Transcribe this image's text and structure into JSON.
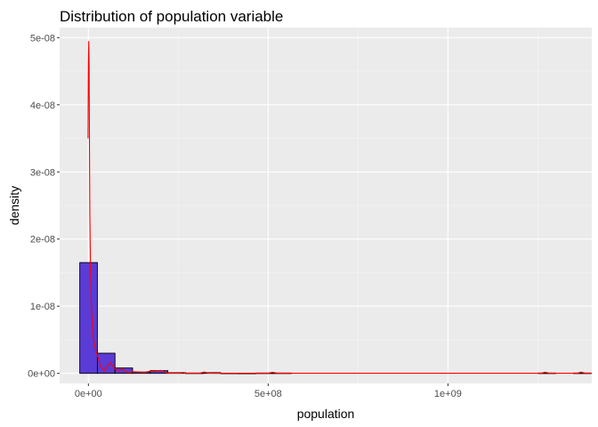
{
  "chart_data": {
    "type": "histogram",
    "title": "Distribution of population variable",
    "xlabel": "population",
    "ylabel": "density",
    "xlim": [
      -80000000,
      1400000000
    ],
    "ylim": [
      -1.5e-09,
      5.15e-08
    ],
    "x_ticks": [
      {
        "value": 0,
        "label": "0e+00"
      },
      {
        "value": 500000000,
        "label": "5e+08"
      },
      {
        "value": 1000000000,
        "label": "1e+09"
      }
    ],
    "y_ticks": [
      {
        "value": 0,
        "label": "0e+00"
      },
      {
        "value": 1e-08,
        "label": "1e-08"
      },
      {
        "value": 2e-08,
        "label": "2e-08"
      },
      {
        "value": 3e-08,
        "label": "3e-08"
      },
      {
        "value": 4e-08,
        "label": "4e-08"
      },
      {
        "value": 5e-08,
        "label": "5e-08"
      }
    ],
    "grid": true,
    "bin_width": 49000000,
    "bars": [
      {
        "x_start": -24000000,
        "x_end": 25000000,
        "density": 1.65e-08
      },
      {
        "x_start": 25000000,
        "x_end": 74000000,
        "density": 3e-09
      },
      {
        "x_start": 74000000,
        "x_end": 123000000,
        "density": 8e-10
      },
      {
        "x_start": 123000000,
        "x_end": 172000000,
        "density": 2e-10
      },
      {
        "x_start": 172000000,
        "x_end": 221000000,
        "density": 4e-10
      },
      {
        "x_start": 221000000,
        "x_end": 270000000,
        "density": 1e-10
      },
      {
        "x_start": 270000000,
        "x_end": 319000000,
        "density": 5e-11
      },
      {
        "x_start": 319000000,
        "x_end": 368000000,
        "density": 1e-10
      },
      {
        "x_start": 368000000,
        "x_end": 417000000,
        "density": 3e-11
      },
      {
        "x_start": 417000000,
        "x_end": 466000000,
        "density": 2e-11
      },
      {
        "x_start": 466000000,
        "x_end": 515000000,
        "density": 5e-11
      },
      {
        "x_start": 515000000,
        "x_end": 564000000,
        "density": 5e-11
      },
      {
        "x_start": 1251000000,
        "x_end": 1300000000,
        "density": 5e-11
      },
      {
        "x_start": 1349000000,
        "x_end": 1398000000,
        "density": 5e-11
      }
    ],
    "density_curve": {
      "x": [
        -1000000,
        0,
        1000000,
        2000000,
        3000000,
        4000000,
        6000000,
        9000000,
        14000000,
        20000000,
        26000000,
        34000000,
        45000000,
        55000000,
        62000000,
        70000000,
        80000000,
        95000000,
        110000000,
        125000000,
        140000000,
        155000000,
        170000000,
        190000000,
        200000000,
        210000000,
        220000000,
        240000000,
        255000000,
        262000000,
        270000000,
        290000000,
        310000000,
        322000000,
        335000000,
        360000000,
        500000000,
        512000000,
        525000000,
        600000000,
        800000000,
        1000000000,
        1200000000,
        1260000000,
        1270000000,
        1282000000,
        1330000000,
        1360000000,
        1370000000,
        1382000000,
        1400000000
      ],
      "y": [
        3.5e-08,
        4.6e-08,
        4.95e-08,
        4.6e-08,
        3.4e-08,
        2.4e-08,
        1.5e-08,
        9e-09,
        5e-09,
        3.5e-09,
        2.5e-09,
        1e-09,
        3.5e-10,
        1.2e-09,
        1.6e-09,
        9e-10,
        4e-10,
        6e-10,
        1e-10,
        2.5e-10,
        2e-10,
        1.5e-10,
        3e-10,
        3e-10,
        4.5e-10,
        2.5e-10,
        5e-11,
        5e-11,
        1e-11,
        1.5e-10,
        1e-11,
        2e-11,
        2e-11,
        2e-10,
        3e-11,
        1e-11,
        1e-11,
        1.6e-10,
        1e-11,
        1e-11,
        1e-11,
        1e-11,
        1e-11,
        1e-11,
        1.8e-10,
        1e-11,
        1e-11,
        1e-11,
        2e-10,
        1e-11,
        1e-11
      ]
    },
    "colors": {
      "panel_background": "#ebebeb",
      "grid_major": "#ffffff",
      "grid_minor": "#f5f5f5",
      "bar_fill": "#5a3bd6",
      "bar_outline": "#000000",
      "density_line": "#ff0000"
    }
  }
}
